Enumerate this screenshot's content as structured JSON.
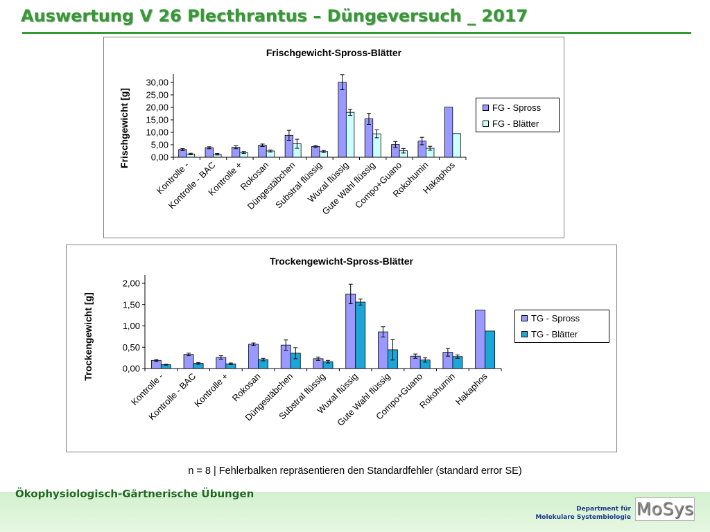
{
  "slide": {
    "title": "Auswertung V 26 Plecthrantus – Düngeversuch _ 2017",
    "caption": "n = 8 | Fehlerbalken repräsentieren den Standardfehler (standard error SE)",
    "course": "Ökophysiologisch-Gärtnerische Übungen",
    "department_line1": "Department für",
    "department_line2": "Molekulare Systembiologie",
    "logo_text": "MoSys",
    "title_color": "#339933"
  },
  "chart_data": [
    {
      "type": "bar",
      "title": "Frischgewicht-Spross-Blätter",
      "xlabel": "",
      "ylabel": "Frischgewicht [g]",
      "ylim": [
        0,
        30
      ],
      "ytick_step": 5,
      "ytick_labels": [
        "0,00",
        "5,00",
        "10,00",
        "15,00",
        "20,00",
        "25,00",
        "30,00"
      ],
      "grid": false,
      "legend": "right",
      "error_bars": "standard error",
      "categories": [
        "Kontrolle -",
        "Kontrolle - BAC",
        "Kontrolle +",
        "Rokosan",
        "Düngestäbchen",
        "Substral flüssig",
        "Wuxal flüssig",
        "Gute Wahl flüssig",
        "Compo+Guano",
        "Rokohumin",
        "Hakaphos"
      ],
      "series": [
        {
          "name": "FG - Spross",
          "color": "#9999ff",
          "values": [
            3.1,
            3.8,
            4.0,
            4.8,
            8.8,
            4.3,
            30.1,
            15.4,
            5.1,
            6.5,
            20.1
          ],
          "errors": [
            0.4,
            0.4,
            0.6,
            0.5,
            2.0,
            0.4,
            3.0,
            2.2,
            1.2,
            1.5,
            null
          ]
        },
        {
          "name": "FG - Blätter",
          "color": "#ccffff",
          "values": [
            1.3,
            1.2,
            1.9,
            2.5,
            5.4,
            2.3,
            18.0,
            9.4,
            2.6,
            3.6,
            9.5
          ],
          "errors": [
            0.3,
            0.3,
            0.4,
            0.4,
            1.8,
            0.4,
            1.2,
            1.6,
            0.9,
            0.8,
            null
          ]
        }
      ]
    },
    {
      "type": "bar",
      "title": "Trockengewicht-Spross-Blätter",
      "xlabel": "",
      "ylabel": "Trockengewicht [g]",
      "ylim": [
        0,
        2
      ],
      "ytick_step": 0.5,
      "ytick_labels": [
        "0,00",
        "0,50",
        "1,00",
        "1,50",
        "2,00"
      ],
      "grid": false,
      "legend": "right",
      "error_bars": "standard error",
      "categories": [
        "Kontrolle -",
        "Kontrolle - BAC",
        "Kontrolle +",
        "Rokosan",
        "Düngestäbchen",
        "Substral flüssig",
        "Wuxal flüssig",
        "Gute Wahl flüssig",
        "Compo+Guano",
        "Rokohumin",
        "Hakaphos"
      ],
      "series": [
        {
          "name": "TG - Spross",
          "color": "#9999ff",
          "values": [
            0.19,
            0.33,
            0.26,
            0.57,
            0.55,
            0.23,
            1.75,
            0.86,
            0.29,
            0.38,
            1.37
          ],
          "errors": [
            0.02,
            0.03,
            0.04,
            0.03,
            0.12,
            0.04,
            0.23,
            0.12,
            0.05,
            0.09,
            null
          ]
        },
        {
          "name": "TG - Blätter",
          "color": "#1ca6d8",
          "values": [
            0.09,
            0.12,
            0.11,
            0.21,
            0.36,
            0.16,
            1.56,
            0.44,
            0.2,
            0.28,
            0.88
          ],
          "errors": [
            0.01,
            0.02,
            0.02,
            0.03,
            0.13,
            0.03,
            0.07,
            0.24,
            0.05,
            0.04,
            null
          ]
        }
      ]
    }
  ]
}
